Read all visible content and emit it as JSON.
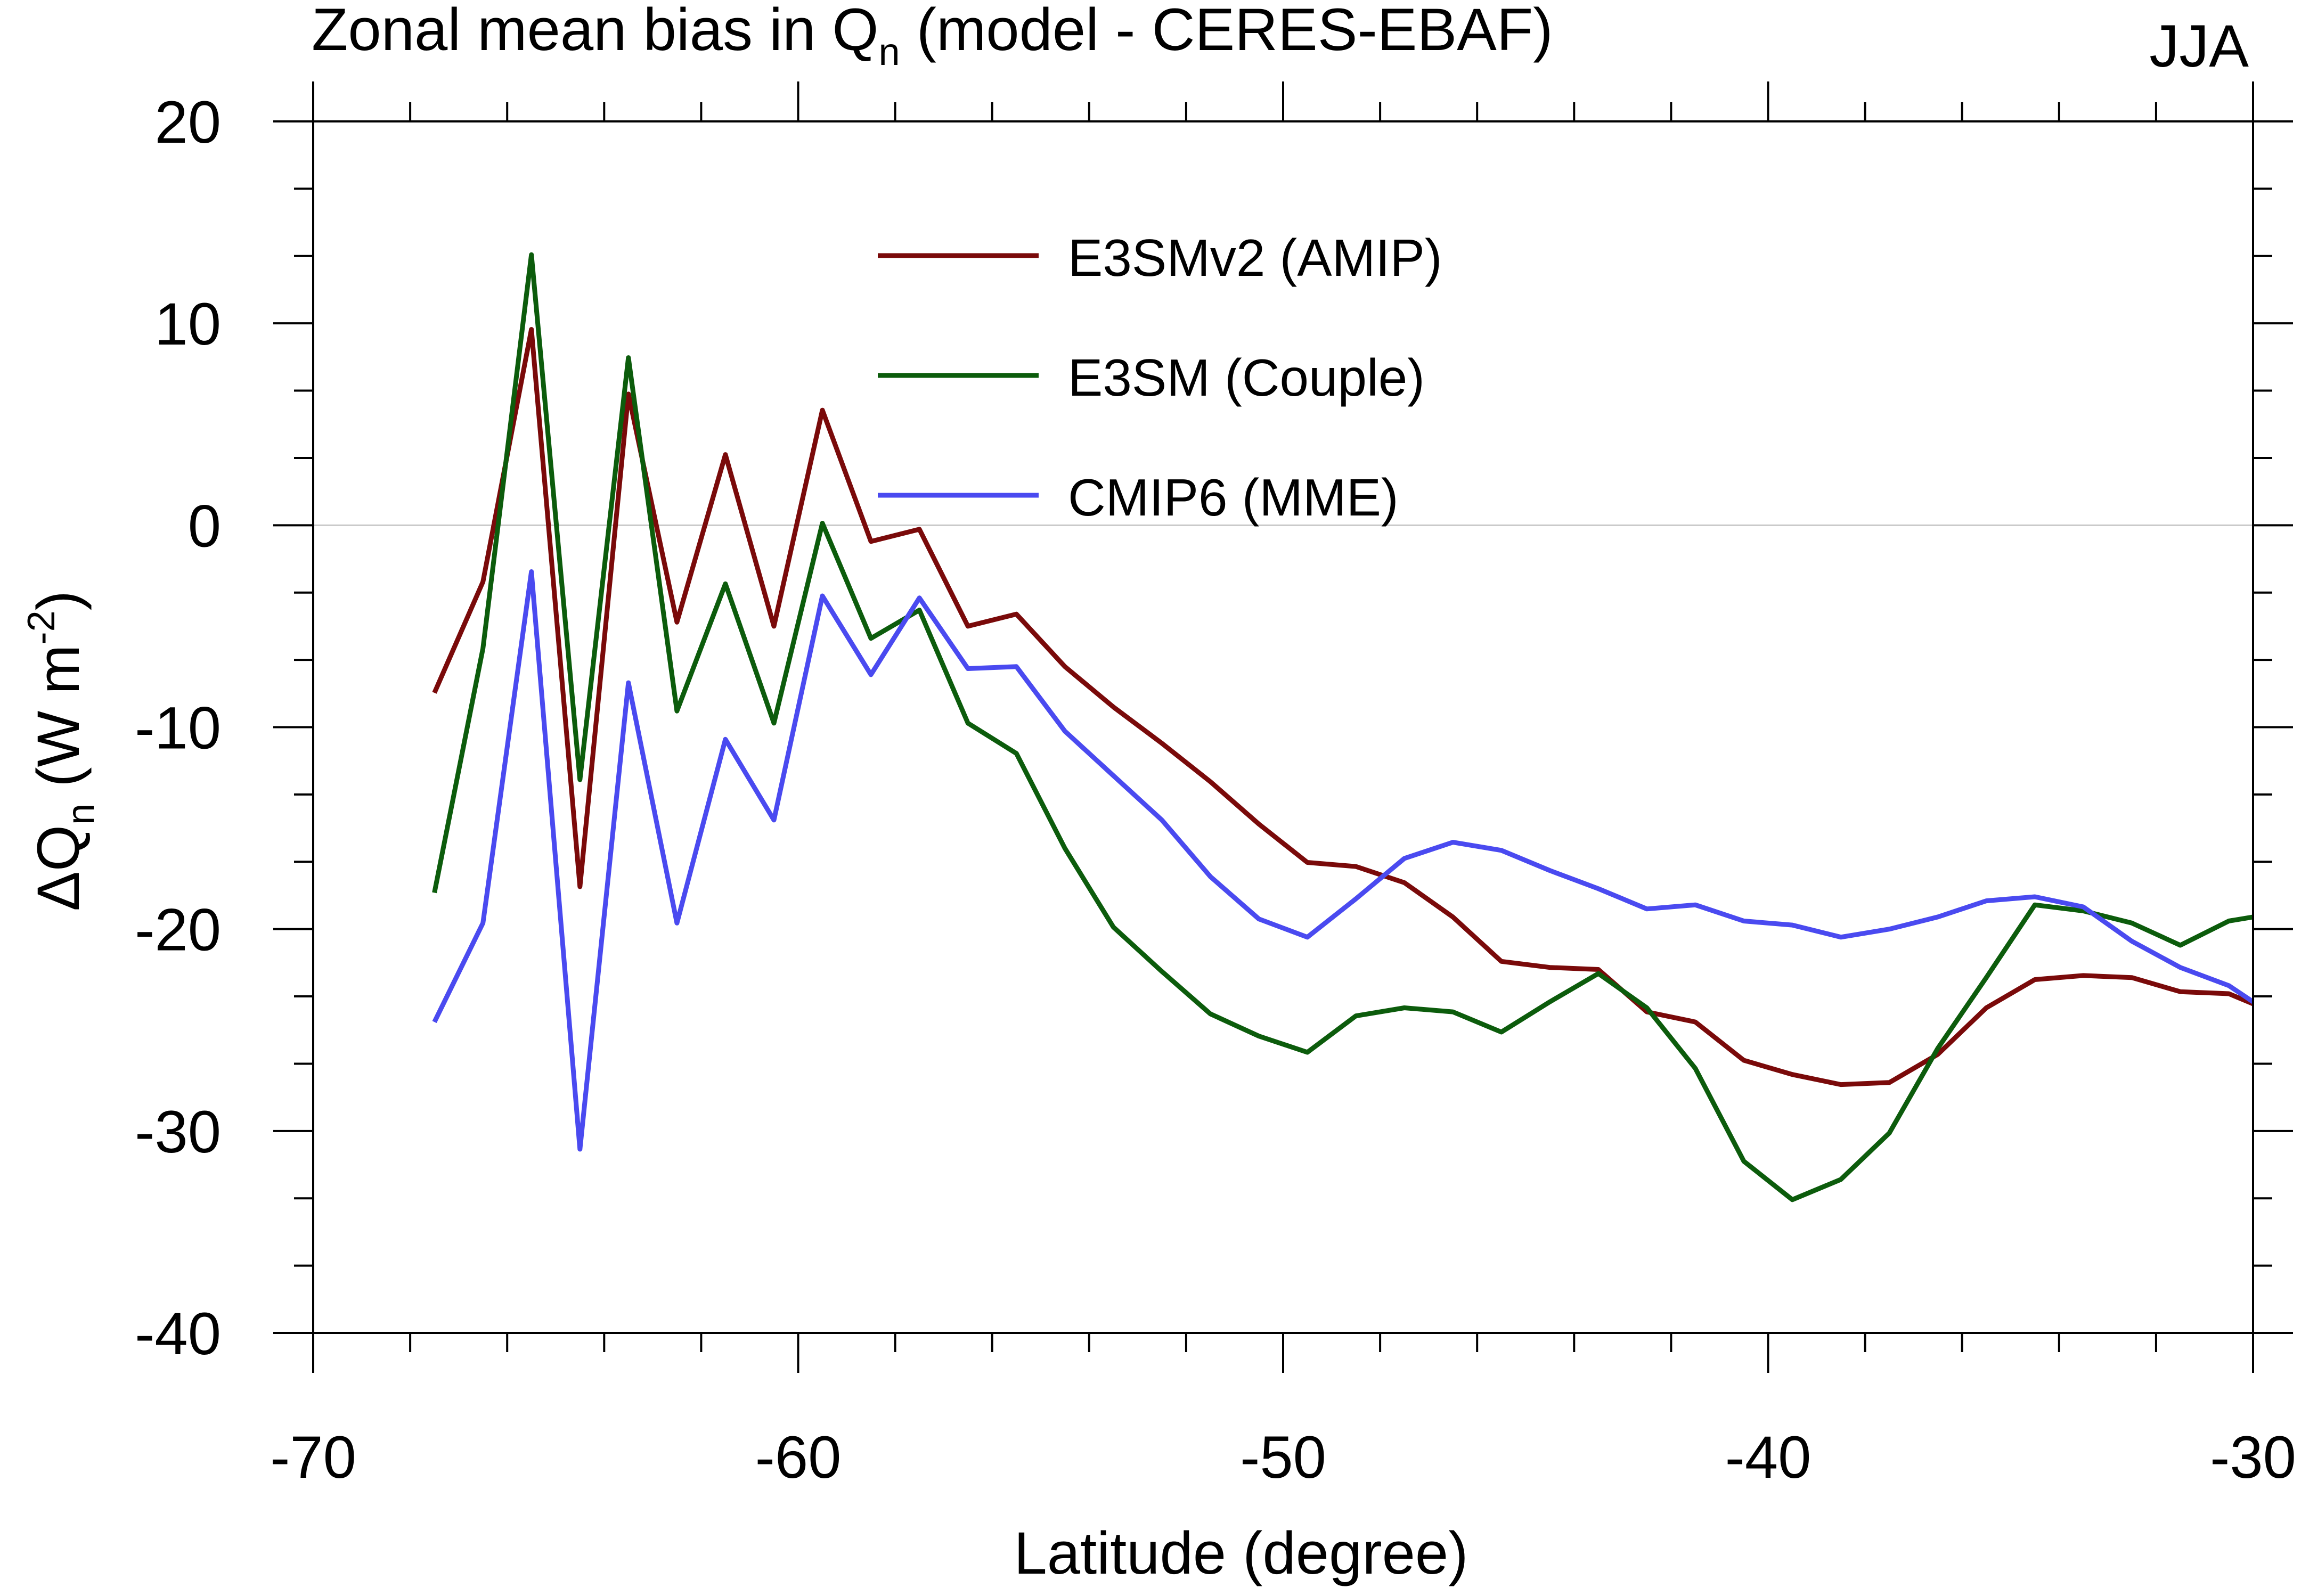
{
  "chart_data": {
    "type": "line",
    "title": {
      "prefix": "Zonal mean bias in Q",
      "sub": "n",
      "suffix": " (model - CERES-EBAF)"
    },
    "season": "JJA",
    "xlabel": "Latitude (degree)",
    "ylabel": {
      "prefix": "ΔQ",
      "sub": "n",
      "middle": " (W m",
      "sup": "-2",
      "suffix": ")"
    },
    "xlim": [
      -70,
      -30
    ],
    "ylim": [
      -40,
      20
    ],
    "xticks": [
      -70,
      -60,
      -50,
      -40,
      -30
    ],
    "xtick_labels": [
      "-70",
      "-60",
      "-50",
      "-40",
      "-30"
    ],
    "yticks": [
      -40,
      -30,
      -20,
      -10,
      0,
      10,
      20
    ],
    "ytick_labels": [
      "-40",
      "-30",
      "-20",
      "-10",
      "0",
      "10",
      "20"
    ],
    "x": [
      -67.5,
      -66.5,
      -65.5,
      -64.5,
      -63.5,
      -62.5,
      -61.5,
      -60.5,
      -59.5,
      -58.5,
      -57.5,
      -56.5,
      -55.5,
      -54.5,
      -53.5,
      -52.5,
      -51.5,
      -50.5,
      -49.5,
      -48.5,
      -47.5,
      -46.5,
      -45.5,
      -44.5,
      -43.5,
      -42.5,
      -41.5,
      -40.5,
      -39.5,
      -38.5,
      -37.5,
      -36.5,
      -35.5,
      -34.5,
      -33.5,
      -32.5,
      -31.5,
      -30.5,
      -30
    ],
    "series": [
      {
        "name": "E3SMv2 (AMIP)",
        "color": "#7a0a0a",
        "values": [
          -8.3,
          -2.8,
          9.7,
          -17.9,
          6.5,
          -4.8,
          3.5,
          -5.0,
          5.7,
          -0.8,
          -0.2,
          -5.0,
          -4.4,
          -7.0,
          -9.0,
          -10.8,
          -12.7,
          -14.8,
          -16.7,
          -16.9,
          -17.7,
          -19.4,
          -21.6,
          -21.9,
          -22.0,
          -24.1,
          -24.6,
          -26.5,
          -27.2,
          -27.7,
          -27.6,
          -26.2,
          -23.9,
          -22.5,
          -22.3,
          -22.4,
          -23.1,
          -23.2,
          -23.7
        ]
      },
      {
        "name": "E3SM (Couple)",
        "color": "#0c5c0c",
        "values": [
          -18.2,
          -6.1,
          13.4,
          -12.6,
          8.3,
          -9.2,
          -2.9,
          -9.8,
          0.1,
          -5.6,
          -4.2,
          -9.8,
          -11.3,
          -16.0,
          -19.9,
          -22.1,
          -24.2,
          -25.3,
          -26.1,
          -24.3,
          -23.9,
          -24.1,
          -25.1,
          -23.6,
          -22.2,
          -23.9,
          -26.9,
          -31.5,
          -33.4,
          -32.4,
          -30.1,
          -25.9,
          -22.4,
          -18.8,
          -19.1,
          -19.7,
          -20.8,
          -19.6,
          -19.4
        ]
      },
      {
        "name": "CMIP6 (MME)",
        "color": "#4a4af0",
        "values": [
          -24.6,
          -19.7,
          -2.3,
          -30.9,
          -7.8,
          -19.7,
          -10.6,
          -14.6,
          -3.5,
          -7.4,
          -3.6,
          -7.1,
          -7.0,
          -10.2,
          -12.4,
          -14.6,
          -17.4,
          -19.5,
          -20.4,
          -18.5,
          -16.5,
          -15.7,
          -16.1,
          -17.1,
          -18.0,
          -19.0,
          -18.8,
          -19.6,
          -19.8,
          -20.4,
          -20.0,
          -19.4,
          -18.6,
          -18.4,
          -18.9,
          -20.6,
          -21.9,
          -22.8,
          -23.6
        ]
      }
    ],
    "grid": false,
    "zero_line": true,
    "legend_position": "upper-center"
  }
}
